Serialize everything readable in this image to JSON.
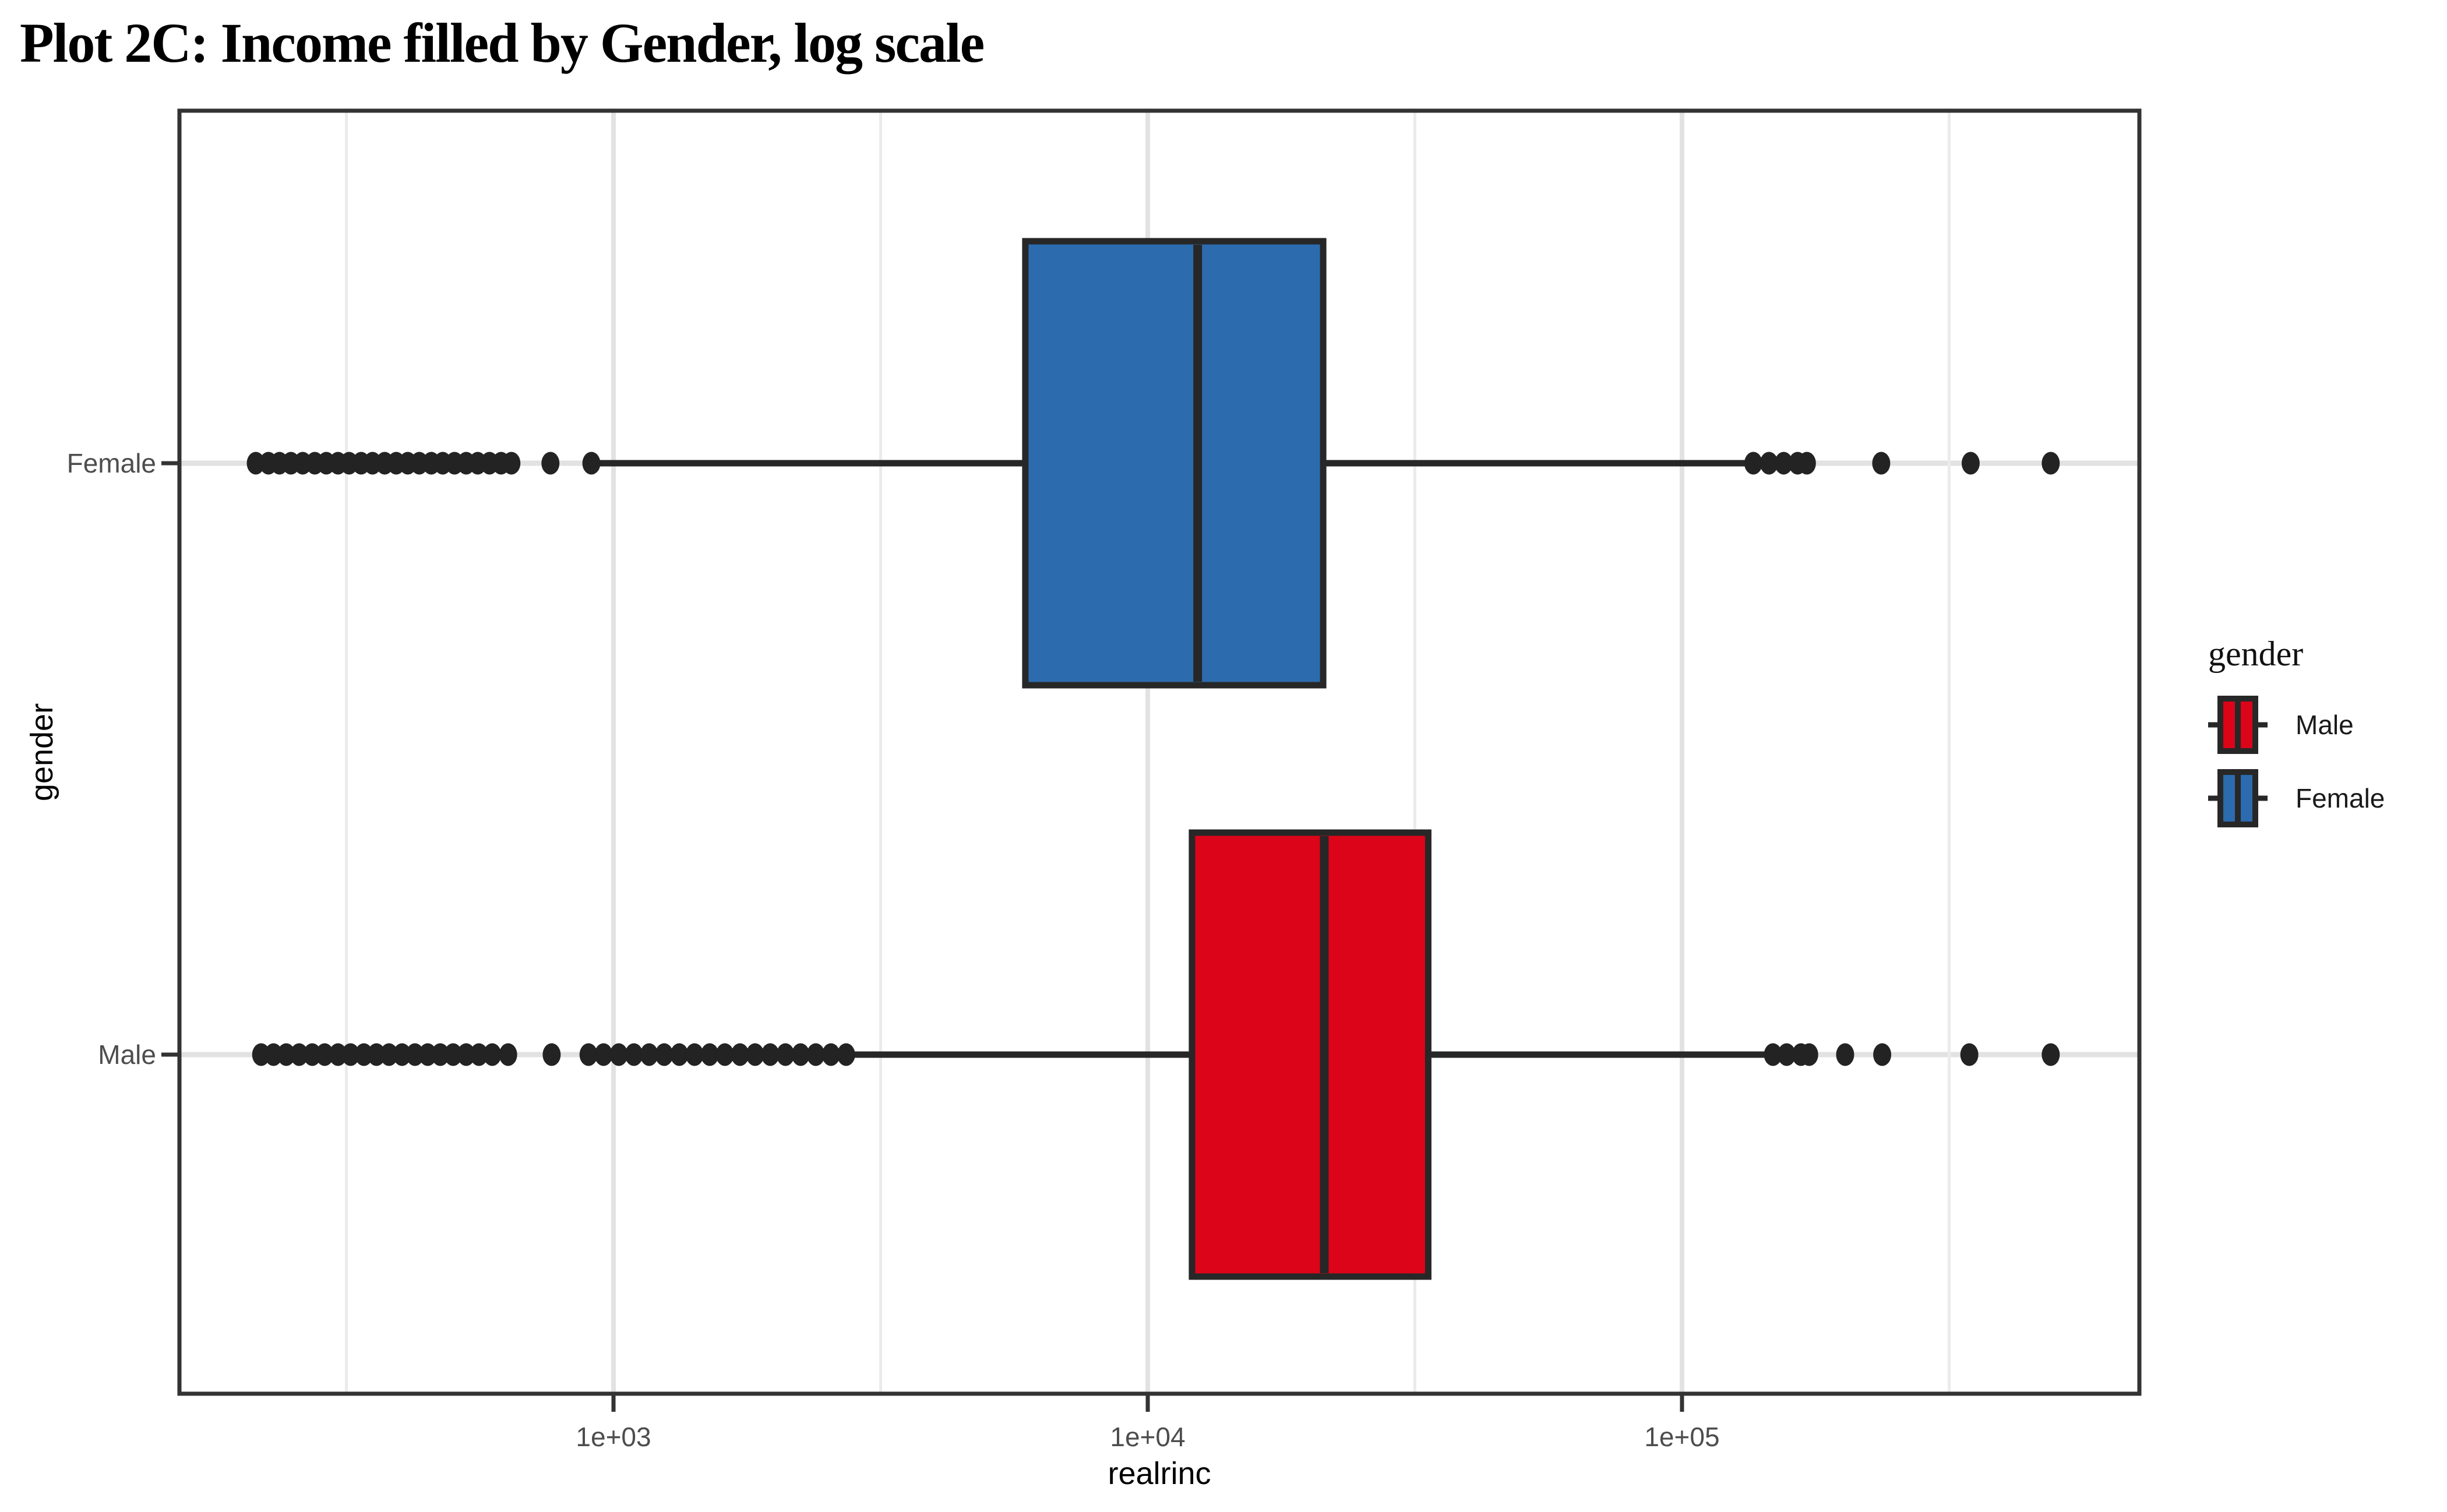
{
  "title": "Plot 2C: Income filled by Gender, log scale",
  "chart_data": {
    "type": "boxplot",
    "orientation": "horizontal",
    "title": "Plot 2C: Income filled by Gender, log scale",
    "xlabel": "realrinc",
    "ylabel": "gender",
    "background": "#FFFFFF",
    "grid": "on",
    "x_scale": {
      "type": "log10",
      "domain": [
        154,
        718000
      ],
      "ticks": [
        1000,
        10000,
        100000
      ],
      "tick_labels": [
        "1e+03",
        "1e+04",
        "1e+05"
      ],
      "minor_ticks": [
        316.23,
        3162.28,
        31622.78,
        316227.77
      ]
    },
    "categories": [
      "Female",
      "Male"
    ],
    "series": [
      {
        "name": "Male",
        "fill": "#DC0419",
        "stats": {
          "lower_whisker": 2700,
          "q1": 12100,
          "median": 21400,
          "q3": 33500,
          "upper_whisker": 147000
        },
        "outliers": [
          219,
          231,
          244,
          258,
          273,
          288,
          305,
          322,
          341,
          360,
          380,
          402,
          425,
          449,
          474,
          501,
          530,
          560,
          593,
          635,
          766,
          898,
          958,
          1023,
          1092,
          1166,
          1244,
          1328,
          1418,
          1514,
          1616,
          1725,
          1841,
          1965,
          2098,
          2240,
          2391,
          2553,
          2725,
          148000,
          157000,
          167000,
          173000,
          202000,
          237000,
          345000,
          490000
        ]
      },
      {
        "name": "Female",
        "fill": "#2C6BAD",
        "stats": {
          "lower_whisker": 890,
          "q1": 5900,
          "median": 12400,
          "q3": 21300,
          "upper_whisker": 136000
        },
        "outliers": [
          214,
          226,
          237,
          249,
          262,
          276,
          290,
          305,
          320,
          337,
          354,
          373,
          392,
          412,
          433,
          456,
          479,
          504,
          530,
          557,
          586,
          616,
          644,
          762,
          909,
          136000,
          145500,
          155000,
          164600,
          171300,
          236000,
          347000,
          490000
        ]
      }
    ],
    "legend": {
      "title": "gender",
      "position": "right",
      "entries": [
        {
          "label": "Male",
          "fill": "#DC0419"
        },
        {
          "label": "Female",
          "fill": "#2C6BAD"
        }
      ]
    },
    "style": {
      "box_border": "#272727",
      "outlier_color": "#232323",
      "grid_major": "#E2E2E2",
      "grid_minor": "#EBEBEB",
      "panel_border": "#333333",
      "tick_color": "#333333",
      "tick_label_color": "#4D4D4D"
    }
  }
}
